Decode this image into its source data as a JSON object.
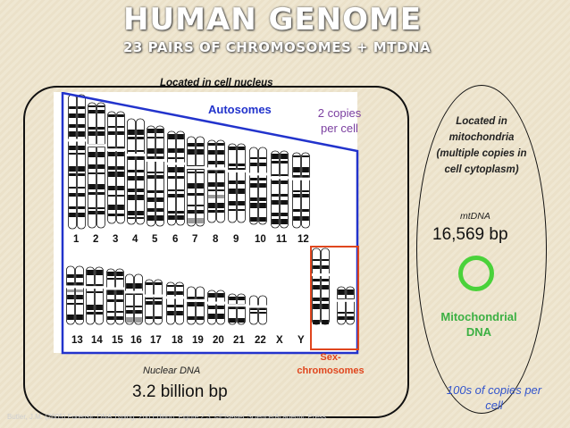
{
  "title": "HUMAN GENOME",
  "subtitle": "23 PAIRS OF CHROMOSOMES + MTDNA",
  "nucleus": {
    "located_label": "Located in cell nucleus",
    "autosomes_label": "Autosomes",
    "copies_label_line1": "2 copies",
    "copies_label_line2": "per cell",
    "row1_numbers": [
      "1",
      "2",
      "3",
      "4",
      "5",
      "6",
      "7",
      "8",
      "9",
      "10",
      "11",
      "12"
    ],
    "row2_numbers": [
      "13",
      "14",
      "15",
      "16",
      "17",
      "18",
      "19",
      "20",
      "21",
      "22",
      "X",
      "Y"
    ],
    "sex_label_line1": "Sex-",
    "sex_label_line2": "chromosomes",
    "nuclear_dna_label": "Nuclear DNA",
    "size_label": "3.2 billion bp"
  },
  "mito": {
    "located_line1": "Located in",
    "located_line2": "mitochondria",
    "located_line3": "(multiple copies in",
    "located_line4": "cell cytoplasm)",
    "mtdna_label": "mtDNA",
    "size_label": "16,569 bp",
    "name_line1": "Mitochondrial",
    "name_line2": "DNA",
    "copies_line1": "100s of copies per",
    "copies_line2": "cell"
  },
  "citation": "Butler, J.M. (2005) Forensic DNA Typing, 2nd Edition; Figure 2.3, ©Elsevier Science/Academic Press",
  "colors": {
    "autosome_blue": "#2233cc",
    "copies_purple": "#7b3fa0",
    "sex_red": "#e0461e",
    "mito_green": "#4ad23a",
    "mito_text_green": "#3cb043",
    "copies_blue": "#3355cc"
  }
}
